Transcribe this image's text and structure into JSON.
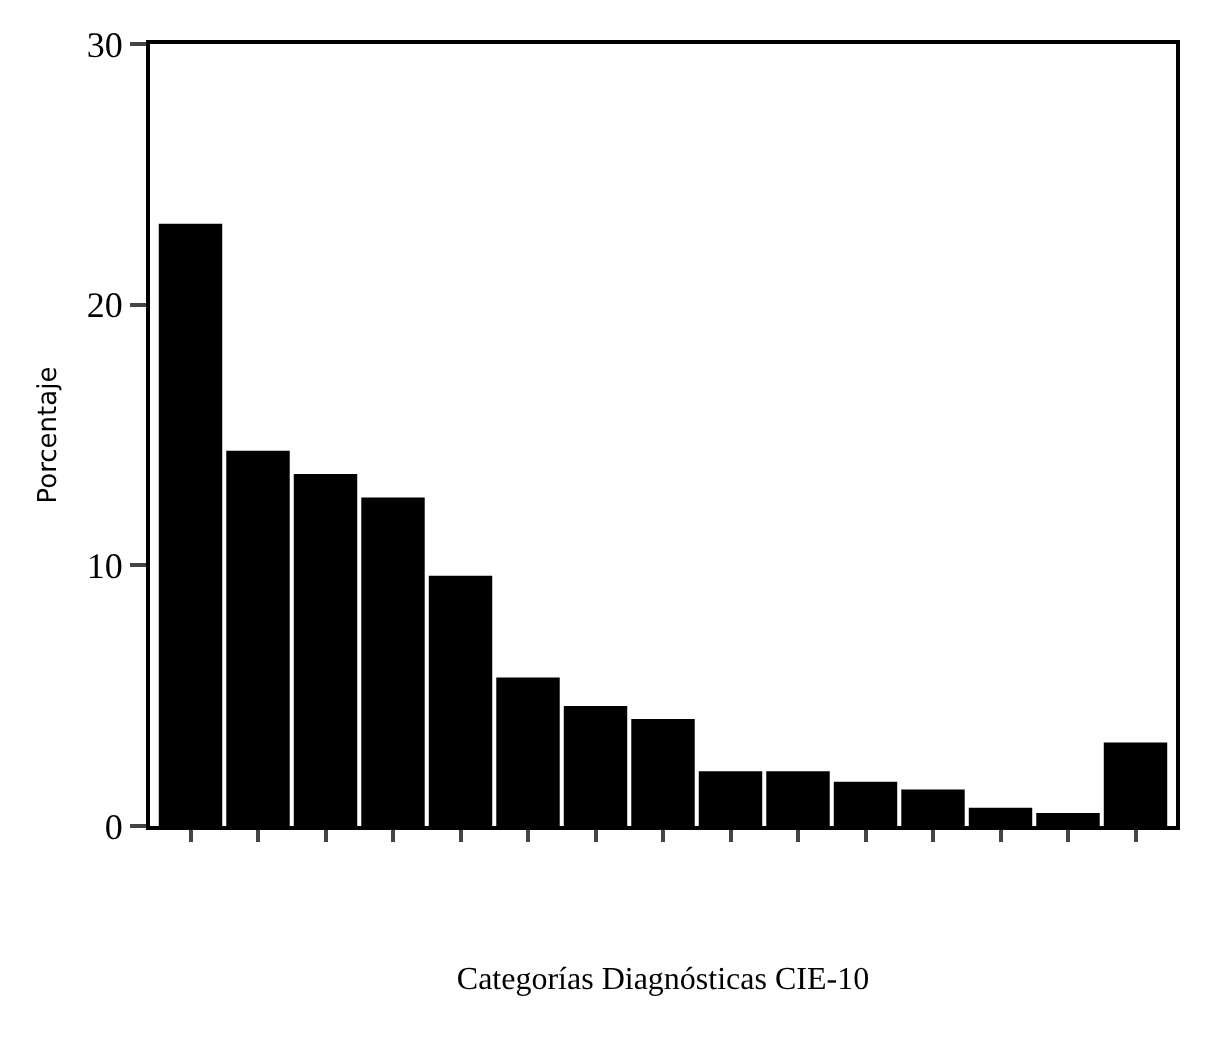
{
  "chart_data": {
    "type": "bar",
    "xlabel": "Categorías Diagnósticas CIE-10",
    "ylabel": "Porcentaje",
    "categories": [
      null,
      null,
      null,
      null,
      null,
      null,
      null,
      null,
      null,
      null,
      null,
      null,
      null,
      null,
      null
    ],
    "values": [
      23.1,
      14.4,
      13.5,
      12.6,
      9.6,
      5.7,
      4.6,
      4.1,
      2.1,
      2.1,
      1.7,
      1.4,
      0.7,
      0.5,
      3.2
    ],
    "color": "#000000",
    "ylim": [
      0,
      30
    ],
    "yticks": [
      0,
      10,
      20,
      30
    ],
    "grid": false,
    "legend": false
  }
}
